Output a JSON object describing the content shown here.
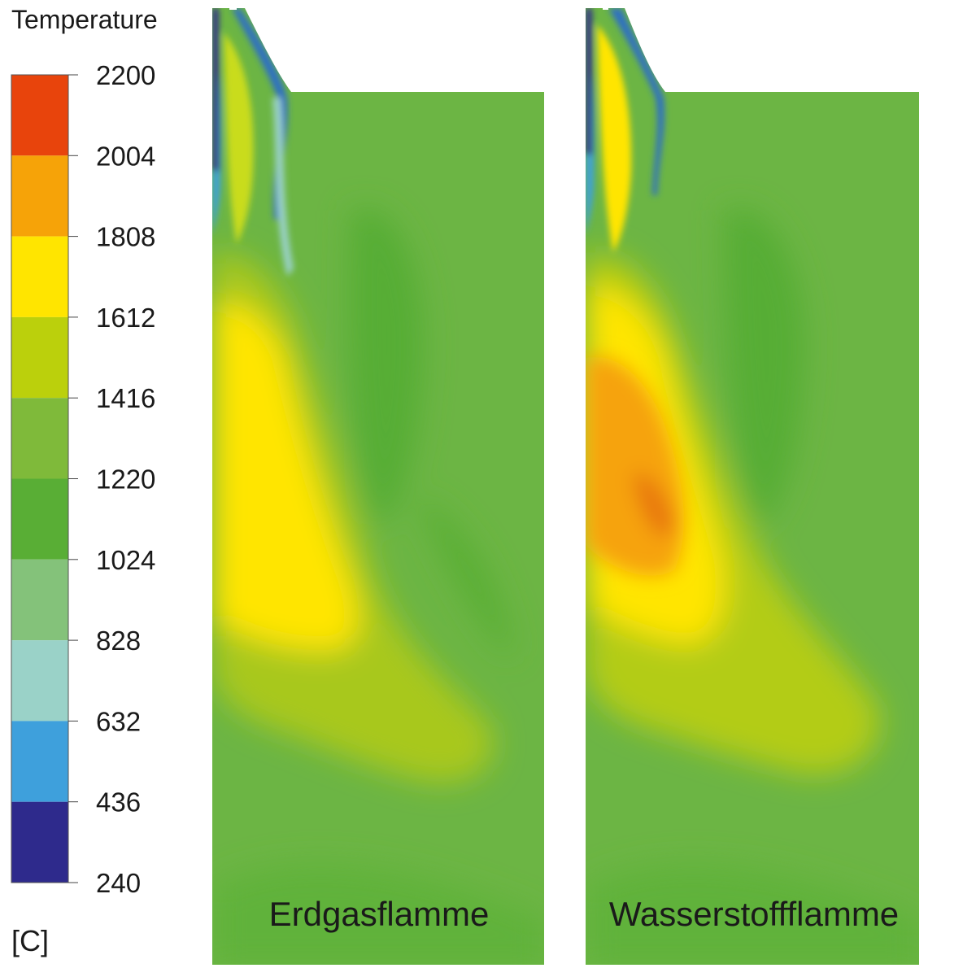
{
  "chart_data": {
    "type": "heatmap",
    "title": "",
    "legend": {
      "title": "Temperature",
      "unit": "[C]",
      "ticks": [
        "2200",
        "2004",
        "1808",
        "1612",
        "1416",
        "1220",
        "1024",
        "828",
        "632",
        "436",
        "240"
      ],
      "levels": [
        {
          "from": 2004,
          "to": 2200,
          "color": "#e8440c"
        },
        {
          "from": 1808,
          "to": 2004,
          "color": "#f6a308"
        },
        {
          "from": 1612,
          "to": 1808,
          "color": "#ffe500"
        },
        {
          "from": 1416,
          "to": 1612,
          "color": "#bbd00c"
        },
        {
          "from": 1220,
          "to": 1416,
          "color": "#7fba3a"
        },
        {
          "from": 1024,
          "to": 1220,
          "color": "#59ae35"
        },
        {
          "from": 828,
          "to": 1024,
          "color": "#84c27a"
        },
        {
          "from": 632,
          "to": 828,
          "color": "#9ad2c8"
        },
        {
          "from": 436,
          "to": 632,
          "color": "#3ea0dc"
        },
        {
          "from": 240,
          "to": 436,
          "color": "#2e2a8c"
        }
      ]
    },
    "panels": [
      {
        "label": "Erdgasflamme",
        "peak_level": "1612-1808"
      },
      {
        "label": "Wasserstoffflamme",
        "peak_level": "2004-2200"
      }
    ]
  }
}
